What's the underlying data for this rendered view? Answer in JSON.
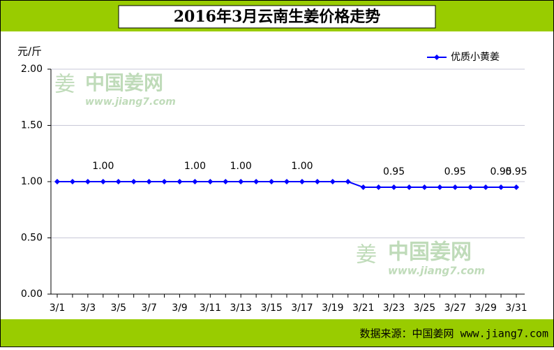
{
  "chart_data": {
    "type": "line",
    "title": "2016年3月云南生姜价格走势",
    "y_label": "元/斤",
    "source": "数据来源：中国姜网 www.jiang7.com",
    "watermark": {
      "name": "中国姜网",
      "url": "www.jiang7.com",
      "icon": "姜"
    },
    "categories": [
      "3/1",
      null,
      "3/3",
      null,
      "3/5",
      null,
      "3/7",
      null,
      "3/9",
      null,
      "3/11",
      null,
      "3/13",
      null,
      "3/15",
      null,
      "3/17",
      null,
      "3/19",
      null,
      "3/21",
      null,
      "3/23",
      null,
      "3/25",
      null,
      "3/27",
      null,
      "3/29",
      null,
      "3/31"
    ],
    "series": [
      {
        "name": "优质小黄姜",
        "color": "#0000ff",
        "values": [
          1,
          1,
          1,
          1,
          1,
          1,
          1,
          1,
          1,
          1,
          1,
          1,
          1,
          1,
          1,
          1,
          1,
          1,
          1,
          1,
          0.95,
          0.95,
          0.95,
          0.95,
          0.95,
          0.95,
          0.95,
          0.95,
          0.95,
          0.95,
          0.95
        ],
        "value_labels": [
          null,
          null,
          null,
          "1.00",
          null,
          null,
          null,
          null,
          null,
          "1.00",
          null,
          null,
          "1.00",
          null,
          null,
          null,
          "1.00",
          null,
          null,
          null,
          null,
          null,
          "0.95",
          null,
          null,
          null,
          "0.95",
          null,
          null,
          "0.95",
          "0.95"
        ]
      }
    ],
    "ylim": [
      0,
      2
    ],
    "yticks": [
      {
        "value": 0,
        "label": "0.00"
      },
      {
        "value": 0.5,
        "label": "0.50"
      },
      {
        "value": 1,
        "label": "1.00"
      },
      {
        "value": 1.5,
        "label": "1.50"
      },
      {
        "value": 2,
        "label": "2.00"
      }
    ],
    "grid": true,
    "legend": "top-right",
    "band_color": "#99cc00"
  }
}
